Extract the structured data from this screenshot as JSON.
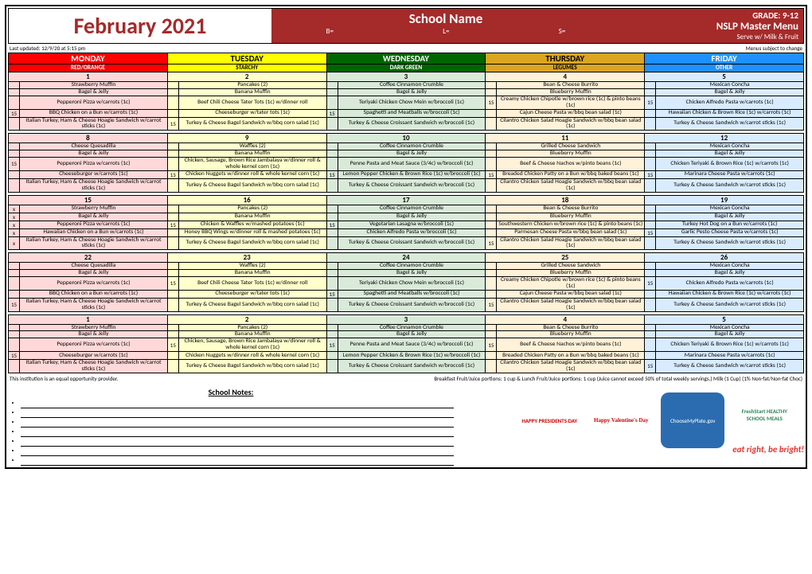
{
  "header": {
    "month": "February 2021",
    "school": "School Name",
    "grade": "GRADE: 9-12",
    "nslp": "NSLP Master Menu",
    "serve": "Serve w/ Milk & Fruit",
    "b": "B=",
    "l": "L=",
    "s": "S="
  },
  "subheader": {
    "updated": "Last updated: 12/9/20 at 5:15 pm",
    "disclaimer": "Menus subject to change"
  },
  "day_colors": {
    "MONDAY": {
      "head": "#ff0000",
      "sub": "RED/ORANGE",
      "body": "#ffd9d9",
      "text": "#ffffff"
    },
    "TUESDAY": {
      "head": "#ffff00",
      "sub": "STARCHY",
      "body": "#ffffcc",
      "text": "#000000"
    },
    "WEDNESDAY": {
      "head": "#006400",
      "sub": "DARK GREEN",
      "body": "#d9ead9",
      "text": "#ffffff"
    },
    "THURSDAY": {
      "head": "#daa520",
      "sub": "LEGUMES",
      "body": "#fff2d9",
      "text": "#000000"
    },
    "FRIDAY": {
      "head": "#1e90ff",
      "sub": "OTHER",
      "body": "#d9ecff",
      "text": "#ffffff"
    }
  },
  "days": [
    "MONDAY",
    "TUESDAY",
    "WEDNESDAY",
    "THURSDAY",
    "FRIDAY"
  ],
  "weeks": [
    {
      "dates": [
        "1",
        "2",
        "3",
        "4",
        "5"
      ],
      "rows": [
        [
          [
            "",
            "Strawberry Muffin"
          ],
          [
            "",
            "Pancakes (2)"
          ],
          [
            "",
            "Coffee Cinnamon Crumble"
          ],
          [
            "",
            "Bean & Cheese Burrito"
          ],
          [
            "",
            "Mexican Concha"
          ]
        ],
        [
          [
            "",
            "Bagel & Jelly"
          ],
          [
            "",
            "Banana Muffin"
          ],
          [
            "",
            "Bagel & Jelly"
          ],
          [
            "",
            "Blueberry Muffin"
          ],
          [
            "",
            "Bagel & Jelly"
          ]
        ],
        [
          [
            "",
            "Pepperoni Pizza w/carrots (1c)"
          ],
          [
            "",
            "Beef Chili Cheese Tater Tots (1c) w/dinner roll"
          ],
          [
            "",
            "Teriyaki Chicken Chow Mein w/broccoli (1c)"
          ],
          [
            "15",
            "Creamy Chicken Chipotle w/brown rice (1c) & pinto beans (1c)"
          ],
          [
            "15",
            "Chicken Alfredo Pasta w/carrots (1c)"
          ]
        ],
        [
          [
            "15",
            "BBQ Chicken on a Bun w/carrots (1c)"
          ],
          [
            "",
            "Cheeseburger w/tater tots (1c)"
          ],
          [
            "15",
            "Spaghetti and Meatballs w/broccoli (1c)"
          ],
          [
            "",
            "Cajun Cheese Pasta w/bbq bean salad (1c)"
          ],
          [
            "",
            "Hawaiian Chicken & Brown Rice (1c) w/carrots (1c)"
          ]
        ],
        [
          [
            "",
            "Italian Turkey, Ham & Cheese Hoagie Sandwich w/carrot sticks (1c)"
          ],
          [
            "15",
            "Turkey & Cheese Bagel Sandwich w/bbq corn salad (1c)"
          ],
          [
            "",
            "Turkey & Cheese Croissant Sandwich w/broccoli (1c)"
          ],
          [
            "",
            "Cilantro Chicken Salad Hoagie Sandwich w/bbq bean salad (1c)"
          ],
          [
            "",
            "Turkey & Cheese Sandwich w/carrot sticks (1c)"
          ]
        ]
      ]
    },
    {
      "dates": [
        "8",
        "9",
        "10",
        "11",
        "12"
      ],
      "rows": [
        [
          [
            "",
            "Cheese Quesadilla"
          ],
          [
            "",
            "Waffles (2)"
          ],
          [
            "",
            "Coffee Cinnamon Crumble"
          ],
          [
            "",
            "Grilled Cheese Sandwich"
          ],
          [
            "",
            "Mexican Concha"
          ]
        ],
        [
          [
            "",
            "Bagel & Jelly"
          ],
          [
            "",
            "Banana Muffin"
          ],
          [
            "",
            "Bagel & Jelly"
          ],
          [
            "",
            "Blueberry Muffin"
          ],
          [
            "",
            "Bagel & Jelly"
          ]
        ],
        [
          [
            "15",
            "Pepperoni Pizza w/carrots (1c)"
          ],
          [
            "",
            "Chicken, Sausage, Brown Rice Jambalaya w/dinner roll & whole kernel corn (1c)"
          ],
          [
            "",
            "Penne Pasta and Meat Sauce (3/4c) w/broccoli (1c)"
          ],
          [
            "",
            "Beef & Cheese Nachos w/pinto beans (1c)"
          ],
          [
            "",
            "Chicken Teriyaki & Brown Rice (1c) w/carrots (1c)"
          ]
        ],
        [
          [
            "",
            "Cheeseburger w/carrots (1c)"
          ],
          [
            "15",
            "Chicken Nuggets w/dinner roll & whole kernel corn (1c)"
          ],
          [
            "15",
            "Lemon Pepper Chicken & Brown Rice (1c) w/broccoli (1c)"
          ],
          [
            "15",
            "Breaded Chicken Patty on a Bun w/bbq baked beans (1c)"
          ],
          [
            "15",
            "Marinara Cheese Pasta w/carrots (1c)"
          ]
        ],
        [
          [
            "",
            "Italian Turkey, Ham & Cheese Hoagie Sandwich w/carrot sticks (1c)"
          ],
          [
            "",
            "Turkey & Cheese Bagel Sandwich w/bbq corn salad (1c)"
          ],
          [
            "",
            "Turkey & Cheese Croissant Sandwich w/broccoli (1c)"
          ],
          [
            "",
            "Cilantro Chicken Salad Hoagie Sandwich w/bbq bean salad (1c)"
          ],
          [
            "",
            "Turkey & Cheese Sandwich w/carrot sticks (1c)"
          ]
        ]
      ]
    },
    {
      "dates": [
        "15",
        "16",
        "17",
        "18",
        "19"
      ],
      "rows": [
        [
          [
            "x",
            "Strawberry Muffin"
          ],
          [
            "",
            "Pancakes (2)"
          ],
          [
            "",
            "Coffee Cinnamon Crumble"
          ],
          [
            "",
            "Bean & Cheese Burrito"
          ],
          [
            "",
            "Mexican Concha"
          ]
        ],
        [
          [
            "x",
            "Bagel & Jelly"
          ],
          [
            "",
            "Banana Muffin"
          ],
          [
            "",
            "Bagel & Jelly"
          ],
          [
            "",
            "Blueberry Muffin"
          ],
          [
            "",
            "Bagel & Jelly"
          ]
        ],
        [
          [
            "x",
            "Pepperoni Pizza w/carrots (1c)"
          ],
          [
            "15",
            "Chicken & Waffles w/mashed potatoes (1c)"
          ],
          [
            "15",
            "Vegetarian Lasagna w/broccoli (1c)"
          ],
          [
            "",
            "Southwestern Chicken w/brown rice (1c) & pinto beans (1c)"
          ],
          [
            "",
            "Turkey Hot Dog on a Bun w/carrots (1c)"
          ]
        ],
        [
          [
            "x",
            "Hawaiian Chicken on a Bun w/carrots (1c)"
          ],
          [
            "",
            "Honey BBQ Wings w/dinner roll & mashed potatoes (1c)"
          ],
          [
            "",
            "Chicken Alfredo Pasta w/broccoli (1c)"
          ],
          [
            "",
            "Parmesan Cheese Pasta w/bbq bean salad (1c)"
          ],
          [
            "15",
            "Garlic Pesto Cheese Pasta w/carrots (1c)"
          ]
        ],
        [
          [
            "x",
            "Italian Turkey, Ham & Cheese Hoagie Sandwich w/carrot sticks (1c)"
          ],
          [
            "",
            "Turkey & Cheese Bagel Sandwich w/bbq corn salad (1c)"
          ],
          [
            "",
            "Turkey & Cheese Croissant Sandwich w/broccoli (1c)"
          ],
          [
            "15",
            "Cilantro Chicken Salad Hoagie Sandwich w/bbq bean salad (1c)"
          ],
          [
            "",
            "Turkey & Cheese Sandwich w/carrot sticks (1c)"
          ]
        ]
      ]
    },
    {
      "dates": [
        "22",
        "23",
        "24",
        "25",
        "26"
      ],
      "rows": [
        [
          [
            "",
            "Cheese Quesadilla"
          ],
          [
            "",
            "Waffles (2)"
          ],
          [
            "",
            "Coffee Cinnamon Crumble"
          ],
          [
            "",
            "Grilled Cheese Sandwich"
          ],
          [
            "",
            "Mexican Concha"
          ]
        ],
        [
          [
            "",
            "Bagel & Jelly"
          ],
          [
            "",
            "Banana Muffin"
          ],
          [
            "",
            "Bagel & Jelly"
          ],
          [
            "",
            "Blueberry Muffin"
          ],
          [
            "",
            "Bagel & Jelly"
          ]
        ],
        [
          [
            "",
            "Pepperoni Pizza w/carrots (1c)"
          ],
          [
            "15",
            "Beef Chili Cheese Tater Tots (1c) w/dinner roll"
          ],
          [
            "",
            "Teriyaki Chicken Chow Mein w/broccoli (1c)"
          ],
          [
            "",
            "Creamy Chicken Chipotle w/brown rice (1c) & pinto beans (1c)"
          ],
          [
            "15",
            "Chicken Alfredo Pasta w/carrots (1c)"
          ]
        ],
        [
          [
            "",
            "BBQ Chicken on a Bun w/carrots (1c)"
          ],
          [
            "",
            "Cheeseburger w/tater tots (1c)"
          ],
          [
            "15",
            "Spaghetti and Meatballs w/broccoli (1c)"
          ],
          [
            "",
            "Cajun Cheese Pasta w/bbq bean salad (1c)"
          ],
          [
            "",
            "Hawaiian Chicken & Brown Rice (1c) w/carrots (1c)"
          ]
        ],
        [
          [
            "15",
            "Italian Turkey, Ham & Cheese Hoagie Sandwich w/carrot sticks (1c)"
          ],
          [
            "",
            "Turkey & Cheese Bagel Sandwich w/bbq corn salad (1c)"
          ],
          [
            "",
            "Turkey & Cheese Croissant Sandwich w/broccoli (1c)"
          ],
          [
            "15",
            "Cilantro Chicken Salad Hoagie Sandwich w/bbq bean salad (1c)"
          ],
          [
            "",
            "Turkey & Cheese Sandwich w/carrot sticks (1c)"
          ]
        ]
      ]
    },
    {
      "dates": [
        "1",
        "2",
        "3",
        "4",
        "5"
      ],
      "rows": [
        [
          [
            "",
            "Strawberry Muffin"
          ],
          [
            "",
            "Pancakes (2)"
          ],
          [
            "",
            "Coffee Cinnamon Crumble"
          ],
          [
            "",
            "Bean & Cheese Burrito"
          ],
          [
            "",
            "Mexican Concha"
          ]
        ],
        [
          [
            "",
            "Bagel & Jelly"
          ],
          [
            "",
            "Banana Muffin"
          ],
          [
            "",
            "Bagel & Jelly"
          ],
          [
            "",
            "Blueberry Muffin"
          ],
          [
            "",
            "Bagel & Jelly"
          ]
        ],
        [
          [
            "",
            "Pepperoni Pizza w/carrots (1c)"
          ],
          [
            "15",
            "Chicken, Sausage, Brown Rice Jambalaya w/dinner roll & whole kernel corn (1c)"
          ],
          [
            "15",
            "Penne Pasta and Meat Sauce (3/4c) w/broccoli (1c)"
          ],
          [
            "15",
            "Beef & Cheese Nachos w/pinto beans (1c)"
          ],
          [
            "",
            "Chicken Teriyaki & Brown Rice (1c) w/carrots (1c)"
          ]
        ],
        [
          [
            "15",
            "Cheeseburger w/carrots (1c)"
          ],
          [
            "",
            "Chicken Nuggets w/dinner roll & whole kernel corn (1c)"
          ],
          [
            "",
            "Lemon Pepper Chicken & Brown Rice (1c) w/broccoli (1c)"
          ],
          [
            "",
            "Breaded Chicken Patty on a Bun w/bbq baked beans (1c)"
          ],
          [
            "",
            "Marinara Cheese Pasta w/carrots (1c)"
          ]
        ],
        [
          [
            "",
            "Italian Turkey, Ham & Cheese Hoagie Sandwich w/carrot sticks (1c)"
          ],
          [
            "",
            "Turkey & Cheese Bagel Sandwich w/bbq corn salad (1c)"
          ],
          [
            "",
            "Turkey & Cheese Croissant Sandwich w/broccoli (1c)"
          ],
          [
            "",
            "Cilantro Chicken Salad Hoagie Sandwich w/bbq bean salad (1c)"
          ],
          [
            "15",
            "Turkey & Cheese Sandwich w/carrot sticks (1c)"
          ]
        ]
      ]
    }
  ],
  "footer": {
    "equal": "This institution is an equal opportunity provider.",
    "portions": "Breakfast Fruit/Juice portions: 1 cup & Lunch Fruit/Juice portions: 1 cup (Juice cannot exceed 50% of total weekly servings.) Milk (1 Cup) (1% Non-fat/Non-fat Choc)"
  },
  "notes_title": "School Notes:",
  "logos": {
    "presidents": "HAPPY PRESIDENTS DAY",
    "valentines": "Happy Valentine's Day",
    "myplate": "ChooseMyPlate.gov",
    "freshstart": "FreshStart HEALTHY SCHOOL MEALS"
  },
  "tagline": "eat right, be bright!"
}
